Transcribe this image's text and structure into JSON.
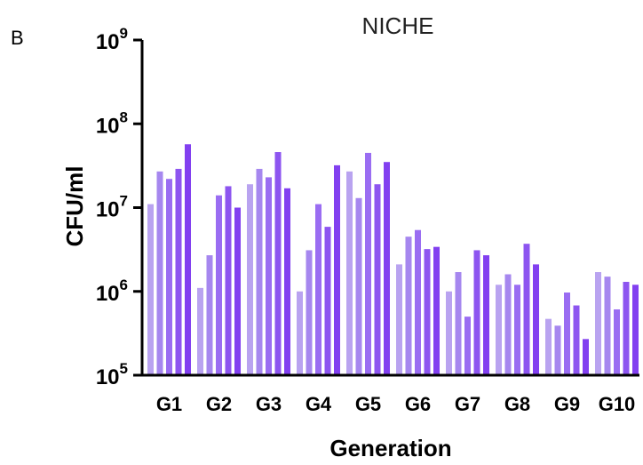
{
  "panel_label": "B",
  "chart_data": {
    "type": "bar",
    "title": "NICHE",
    "xlabel": "Generation",
    "ylabel": "CFU/ml",
    "yscale": "log",
    "ylim": [
      100000,
      1000000000
    ],
    "yticks": [
      {
        "value": 100000,
        "base": "10",
        "exp": "5"
      },
      {
        "value": 1000000,
        "base": "10",
        "exp": "6"
      },
      {
        "value": 10000000,
        "base": "10",
        "exp": "7"
      },
      {
        "value": 100000000,
        "base": "10",
        "exp": "8"
      },
      {
        "value": 1000000000,
        "base": "10",
        "exp": "9"
      }
    ],
    "categories": [
      "G1",
      "G2",
      "G3",
      "G4",
      "G5",
      "G6",
      "G7",
      "G8",
      "G9",
      "G10"
    ],
    "colors": [
      "#b9a3f0",
      "#a687ef",
      "#9a6df2",
      "#8d55f0",
      "#8240f0"
    ],
    "values": [
      [
        11000000,
        27000000,
        22000000,
        29000000,
        57000000
      ],
      [
        1100000,
        2700000,
        14000000,
        18000000,
        10000000
      ],
      [
        19000000,
        29000000,
        23000000,
        46000000,
        17000000
      ],
      [
        1000000,
        3100000,
        11000000,
        5900000,
        32000000
      ],
      [
        27000000,
        13000000,
        45000000,
        19000000,
        35000000
      ],
      [
        2100000,
        4500000,
        5400000,
        3200000,
        3400000
      ],
      [
        1000000,
        1700000,
        500000,
        3100000,
        2700000
      ],
      [
        1200000,
        1600000,
        1200000,
        3700000,
        2100000
      ],
      [
        470000,
        390000,
        970000,
        680000,
        270000
      ],
      [
        1700000,
        1500000,
        610000,
        1300000,
        1200000
      ]
    ],
    "grid": false,
    "legend": "none"
  }
}
